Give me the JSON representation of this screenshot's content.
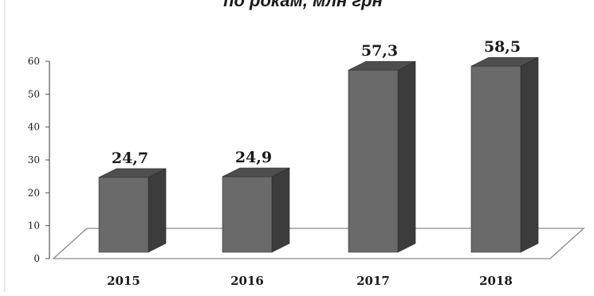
{
  "chart_data": {
    "type": "bar",
    "title": "по рокам, млн грн",
    "categories": [
      "2015",
      "2016",
      "2017",
      "2018"
    ],
    "values": [
      24.7,
      24.9,
      57.3,
      58.5
    ],
    "value_labels": [
      "24,7",
      "24,9",
      "57,3",
      "58,5"
    ],
    "yticks": [
      "0",
      "10",
      "20",
      "30",
      "40",
      "50",
      "60"
    ],
    "ylim": [
      0,
      60
    ],
    "xlabel": "",
    "ylabel": "",
    "grid": false,
    "legend": "none",
    "style": "3d-column",
    "colors": {
      "bar_front": "#6a6a6a",
      "bar_side": "#3c3c3c",
      "bar_top": "#4e4e4e",
      "floor_line": "#8a8a8a",
      "axis": "#555555",
      "text": "#1a1a1a"
    }
  }
}
